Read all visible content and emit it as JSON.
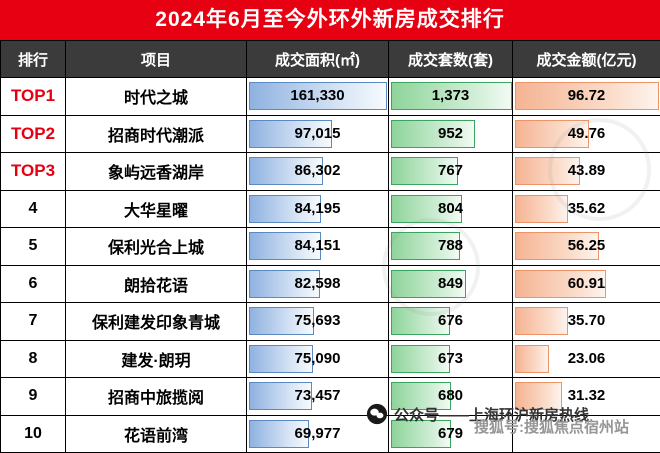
{
  "title": "2024年6月至今外环外新房成交排行",
  "chart_data": {
    "type": "table",
    "title": "2024年6月至今外环外新房成交排行",
    "columns": [
      "排行",
      "项目",
      "成交面积(㎡)",
      "成交套数(套)",
      "成交金额(亿元)"
    ],
    "column_keys": [
      "rank",
      "project",
      "area",
      "units",
      "amount"
    ],
    "rows": [
      {
        "rank": "TOP1",
        "project": "时代之城",
        "area": 161330,
        "units": 1373,
        "amount": 96.72
      },
      {
        "rank": "TOP2",
        "project": "招商时代潮派",
        "area": 97015,
        "units": 952,
        "amount": 49.76
      },
      {
        "rank": "TOP3",
        "project": "象屿远香湖岸",
        "area": 86302,
        "units": 767,
        "amount": 43.89
      },
      {
        "rank": "4",
        "project": "大华星曜",
        "area": 84195,
        "units": 804,
        "amount": 35.62
      },
      {
        "rank": "5",
        "project": "保利光合上城",
        "area": 84151,
        "units": 788,
        "amount": 56.25
      },
      {
        "rank": "6",
        "project": "朗拾花语",
        "area": 82598,
        "units": 849,
        "amount": 60.91
      },
      {
        "rank": "7",
        "project": "保利建发印象青城",
        "area": 75693,
        "units": 676,
        "amount": 35.7
      },
      {
        "rank": "8",
        "project": "建发·朗玥",
        "area": 75090,
        "units": 673,
        "amount": 23.06
      },
      {
        "rank": "9",
        "project": "招商中旅揽阅",
        "area": 73457,
        "units": 680,
        "amount": 31.32
      },
      {
        "rank": "10",
        "project": "花语前湾",
        "area": 69977,
        "units": 679,
        "amount": null
      }
    ]
  },
  "watermarks": {
    "wechat_text": "公众号——上海环沪新房热线",
    "sohu_text": "搜狐号:搜狐焦点宿州站"
  },
  "colors": {
    "title_bg": "#e60012",
    "header_bg": "#3b3b3b",
    "top_rank": "#e60012",
    "area_bar": "#8fb2e0",
    "area_bar_border": "#5b8ac2",
    "units_bar": "#8ed49a",
    "units_bar_border": "#3aa55e",
    "amount_bar": "#f5b493",
    "amount_bar_border": "#ee9468"
  }
}
